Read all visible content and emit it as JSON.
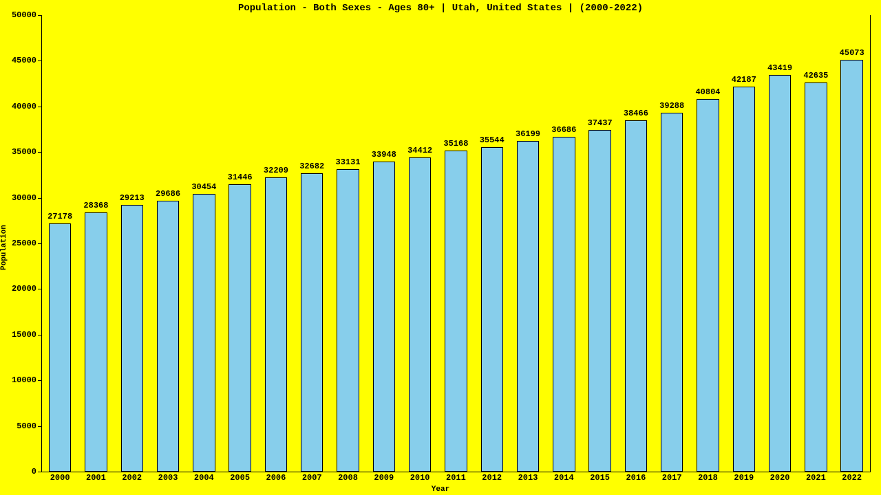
{
  "chart": {
    "type": "bar",
    "title": "Population - Both Sexes - Ages 80+ | Utah, United States |  (2000-2022)",
    "title_fontsize": 14,
    "xlabel": "Year",
    "ylabel": "Population",
    "label_fontsize": 11,
    "tick_fontsize": 12,
    "value_label_fontsize": 12,
    "background_color": "#ffff00",
    "bar_color": "#87ceeb",
    "bar_border_color": "#000000",
    "axis_color": "#000000",
    "text_color": "#000000",
    "font_family": "Courier New, monospace",
    "bar_width_ratio": 0.62,
    "ylim": [
      0,
      50000
    ],
    "ytick_step": 5000,
    "yticks": [
      0,
      5000,
      10000,
      15000,
      20000,
      25000,
      30000,
      35000,
      40000,
      45000,
      50000
    ],
    "categories": [
      "2000",
      "2001",
      "2002",
      "2003",
      "2004",
      "2005",
      "2006",
      "2007",
      "2008",
      "2009",
      "2010",
      "2011",
      "2012",
      "2013",
      "2014",
      "2015",
      "2016",
      "2017",
      "2018",
      "2019",
      "2020",
      "2021",
      "2022"
    ],
    "values": [
      27178,
      28368,
      29213,
      29686,
      30454,
      31446,
      32209,
      32682,
      33131,
      33948,
      34412,
      35168,
      35544,
      36199,
      36686,
      37437,
      38466,
      39288,
      40804,
      42187,
      43419,
      42635,
      45073
    ]
  }
}
